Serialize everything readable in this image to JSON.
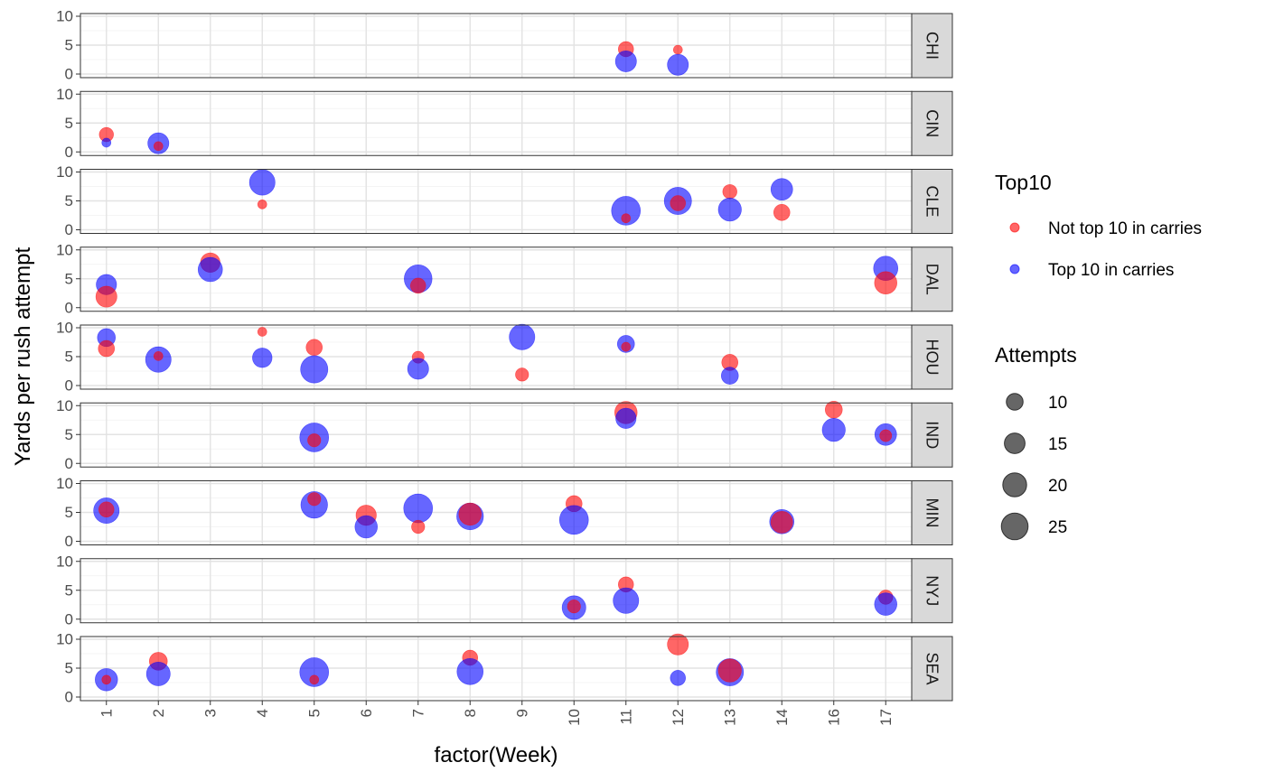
{
  "chart_data": {
    "type": "scatter",
    "xlabel": "factor(Week)",
    "ylabel": "Yards per rush attempt",
    "categories": [
      "1",
      "2",
      "3",
      "4",
      "5",
      "6",
      "7",
      "8",
      "9",
      "10",
      "11",
      "12",
      "13",
      "14",
      "16",
      "17"
    ],
    "ylim": [
      0,
      10
    ],
    "yticks": [
      0,
      5,
      10
    ],
    "grid": true,
    "legend_position": "right",
    "colors": {
      "Not top 10 in carries": "#ff0000",
      "Top 10 in carries": "#0000ff"
    },
    "color_legend": {
      "title": "Top10",
      "items": [
        {
          "label": "Not top 10 in carries",
          "color": "#ff0000"
        },
        {
          "label": "Top 10 in carries",
          "color": "#0000ff"
        }
      ]
    },
    "size_legend": {
      "title": "Attempts",
      "values": [
        10,
        15,
        20,
        25
      ]
    },
    "size_range": [
      2,
      28
    ],
    "facets": [
      {
        "team": "CHI",
        "points": [
          {
            "week": "11",
            "y": 4.3,
            "attempts": 8,
            "top10": "Not top 10 in carries"
          },
          {
            "week": "11",
            "y": 2.2,
            "attempts": 15,
            "top10": "Top 10 in carries"
          },
          {
            "week": "12",
            "y": 4.2,
            "attempts": 3,
            "top10": "Not top 10 in carries"
          },
          {
            "week": "12",
            "y": 1.6,
            "attempts": 15,
            "top10": "Top 10 in carries"
          }
        ]
      },
      {
        "team": "CIN",
        "points": [
          {
            "week": "1",
            "y": 3.0,
            "attempts": 7,
            "top10": "Not top 10 in carries"
          },
          {
            "week": "1",
            "y": 1.6,
            "attempts": 3,
            "top10": "Top 10 in carries"
          },
          {
            "week": "2",
            "y": 1.5,
            "attempts": 15,
            "top10": "Top 10 in carries"
          },
          {
            "week": "2",
            "y": 1.0,
            "attempts": 3,
            "top10": "Not top 10 in carries"
          }
        ]
      },
      {
        "team": "CLE",
        "points": [
          {
            "week": "4",
            "y": 8.2,
            "attempts": 22,
            "top10": "Top 10 in carries"
          },
          {
            "week": "4",
            "y": 4.4,
            "attempts": 3,
            "top10": "Not top 10 in carries"
          },
          {
            "week": "11",
            "y": 3.3,
            "attempts": 28,
            "top10": "Top 10 in carries"
          },
          {
            "week": "11",
            "y": 2.0,
            "attempts": 3,
            "top10": "Not top 10 in carries"
          },
          {
            "week": "12",
            "y": 5.0,
            "attempts": 25,
            "top10": "Top 10 in carries"
          },
          {
            "week": "12",
            "y": 4.6,
            "attempts": 8,
            "top10": "Not top 10 in carries"
          },
          {
            "week": "13",
            "y": 6.6,
            "attempts": 7,
            "top10": "Not top 10 in carries"
          },
          {
            "week": "13",
            "y": 3.5,
            "attempts": 18,
            "top10": "Top 10 in carries"
          },
          {
            "week": "14",
            "y": 7.0,
            "attempts": 16,
            "top10": "Top 10 in carries"
          },
          {
            "week": "14",
            "y": 3.0,
            "attempts": 9,
            "top10": "Not top 10 in carries"
          }
        ]
      },
      {
        "team": "DAL",
        "points": [
          {
            "week": "1",
            "y": 4.0,
            "attempts": 14,
            "top10": "Top 10 in carries"
          },
          {
            "week": "1",
            "y": 1.9,
            "attempts": 15,
            "top10": "Not top 10 in carries"
          },
          {
            "week": "3",
            "y": 7.8,
            "attempts": 13,
            "top10": "Not top 10 in carries"
          },
          {
            "week": "3",
            "y": 6.6,
            "attempts": 20,
            "top10": "Top 10 in carries"
          },
          {
            "week": "7",
            "y": 5.0,
            "attempts": 26,
            "top10": "Top 10 in carries"
          },
          {
            "week": "7",
            "y": 3.8,
            "attempts": 8,
            "top10": "Not top 10 in carries"
          },
          {
            "week": "17",
            "y": 6.8,
            "attempts": 20,
            "top10": "Top 10 in carries"
          },
          {
            "week": "17",
            "y": 4.3,
            "attempts": 17,
            "top10": "Not top 10 in carries"
          }
        ]
      },
      {
        "team": "HOU",
        "points": [
          {
            "week": "1",
            "y": 8.3,
            "attempts": 11,
            "top10": "Top 10 in carries"
          },
          {
            "week": "1",
            "y": 6.4,
            "attempts": 9,
            "top10": "Not top 10 in carries"
          },
          {
            "week": "2",
            "y": 4.5,
            "attempts": 22,
            "top10": "Top 10 in carries"
          },
          {
            "week": "2",
            "y": 5.1,
            "attempts": 3,
            "top10": "Not top 10 in carries"
          },
          {
            "week": "4",
            "y": 9.3,
            "attempts": 3,
            "top10": "Not top 10 in carries"
          },
          {
            "week": "4",
            "y": 4.8,
            "attempts": 13,
            "top10": "Top 10 in carries"
          },
          {
            "week": "5",
            "y": 6.6,
            "attempts": 9,
            "top10": "Not top 10 in carries"
          },
          {
            "week": "5",
            "y": 2.8,
            "attempts": 25,
            "top10": "Top 10 in carries"
          },
          {
            "week": "7",
            "y": 4.9,
            "attempts": 5,
            "top10": "Not top 10 in carries"
          },
          {
            "week": "7",
            "y": 2.9,
            "attempts": 15,
            "top10": "Top 10 in carries"
          },
          {
            "week": "9",
            "y": 8.4,
            "attempts": 22,
            "top10": "Top 10 in carries"
          },
          {
            "week": "9",
            "y": 1.9,
            "attempts": 6,
            "top10": "Not top 10 in carries"
          },
          {
            "week": "11",
            "y": 7.2,
            "attempts": 10,
            "top10": "Top 10 in carries"
          },
          {
            "week": "11",
            "y": 6.7,
            "attempts": 3,
            "top10": "Not top 10 in carries"
          },
          {
            "week": "13",
            "y": 4.0,
            "attempts": 9,
            "top10": "Not top 10 in carries"
          },
          {
            "week": "13",
            "y": 1.7,
            "attempts": 10,
            "top10": "Top 10 in carries"
          }
        ]
      },
      {
        "team": "IND",
        "points": [
          {
            "week": "5",
            "y": 4.5,
            "attempts": 29,
            "top10": "Top 10 in carries"
          },
          {
            "week": "5",
            "y": 4.0,
            "attempts": 6,
            "top10": "Not top 10 in carries"
          },
          {
            "week": "11",
            "y": 8.8,
            "attempts": 17,
            "top10": "Not top 10 in carries"
          },
          {
            "week": "11",
            "y": 7.8,
            "attempts": 14,
            "top10": "Top 10 in carries"
          },
          {
            "week": "16",
            "y": 9.3,
            "attempts": 10,
            "top10": "Not top 10 in carries"
          },
          {
            "week": "16",
            "y": 5.8,
            "attempts": 18,
            "top10": "Top 10 in carries"
          },
          {
            "week": "17",
            "y": 5.0,
            "attempts": 16,
            "top10": "Top 10 in carries"
          },
          {
            "week": "17",
            "y": 4.8,
            "attempts": 5,
            "top10": "Not top 10 in carries"
          }
        ]
      },
      {
        "team": "MIN",
        "points": [
          {
            "week": "1",
            "y": 5.3,
            "attempts": 22,
            "top10": "Top 10 in carries"
          },
          {
            "week": "1",
            "y": 5.5,
            "attempts": 8,
            "top10": "Not top 10 in carries"
          },
          {
            "week": "5",
            "y": 6.3,
            "attempts": 24,
            "top10": "Top 10 in carries"
          },
          {
            "week": "5",
            "y": 7.3,
            "attempts": 6,
            "top10": "Not top 10 in carries"
          },
          {
            "week": "6",
            "y": 4.5,
            "attempts": 14,
            "top10": "Not top 10 in carries"
          },
          {
            "week": "6",
            "y": 2.5,
            "attempts": 17,
            "top10": "Top 10 in carries"
          },
          {
            "week": "7",
            "y": 5.7,
            "attempts": 28,
            "top10": "Top 10 in carries"
          },
          {
            "week": "7",
            "y": 2.5,
            "attempts": 6,
            "top10": "Not top 10 in carries"
          },
          {
            "week": "8",
            "y": 4.3,
            "attempts": 24,
            "top10": "Top 10 in carries"
          },
          {
            "week": "8",
            "y": 4.7,
            "attempts": 17,
            "top10": "Not top 10 in carries"
          },
          {
            "week": "10",
            "y": 6.5,
            "attempts": 9,
            "top10": "Not top 10 in carries"
          },
          {
            "week": "10",
            "y": 3.7,
            "attempts": 30,
            "top10": "Top 10 in carries"
          },
          {
            "week": "14",
            "y": 3.4,
            "attempts": 20,
            "top10": "Top 10 in carries"
          },
          {
            "week": "14",
            "y": 3.3,
            "attempts": 16,
            "top10": "Not top 10 in carries"
          }
        ]
      },
      {
        "team": "NYJ",
        "points": [
          {
            "week": "10",
            "y": 2.0,
            "attempts": 19,
            "top10": "Top 10 in carries"
          },
          {
            "week": "10",
            "y": 2.2,
            "attempts": 6,
            "top10": "Not top 10 in carries"
          },
          {
            "week": "11",
            "y": 6.0,
            "attempts": 8,
            "top10": "Not top 10 in carries"
          },
          {
            "week": "11",
            "y": 3.2,
            "attempts": 22,
            "top10": "Top 10 in carries"
          },
          {
            "week": "17",
            "y": 3.8,
            "attempts": 7,
            "top10": "Not top 10 in carries"
          },
          {
            "week": "17",
            "y": 2.6,
            "attempts": 17,
            "top10": "Top 10 in carries"
          }
        ]
      },
      {
        "team": "SEA",
        "points": [
          {
            "week": "1",
            "y": 3.0,
            "attempts": 17,
            "top10": "Top 10 in carries"
          },
          {
            "week": "1",
            "y": 3.0,
            "attempts": 3,
            "top10": "Not top 10 in carries"
          },
          {
            "week": "2",
            "y": 6.2,
            "attempts": 11,
            "top10": "Not top 10 in carries"
          },
          {
            "week": "2",
            "y": 4.0,
            "attempts": 19,
            "top10": "Top 10 in carries"
          },
          {
            "week": "5",
            "y": 4.3,
            "attempts": 29,
            "top10": "Top 10 in carries"
          },
          {
            "week": "5",
            "y": 3.0,
            "attempts": 3,
            "top10": "Not top 10 in carries"
          },
          {
            "week": "8",
            "y": 6.8,
            "attempts": 8,
            "top10": "Not top 10 in carries"
          },
          {
            "week": "8",
            "y": 4.4,
            "attempts": 23,
            "top10": "Top 10 in carries"
          },
          {
            "week": "12",
            "y": 9.1,
            "attempts": 15,
            "top10": "Not top 10 in carries"
          },
          {
            "week": "12",
            "y": 3.3,
            "attempts": 8,
            "top10": "Top 10 in carries"
          },
          {
            "week": "13",
            "y": 4.3,
            "attempts": 25,
            "top10": "Top 10 in carries"
          },
          {
            "week": "13",
            "y": 4.6,
            "attempts": 18,
            "top10": "Not top 10 in carries"
          }
        ]
      }
    ]
  }
}
